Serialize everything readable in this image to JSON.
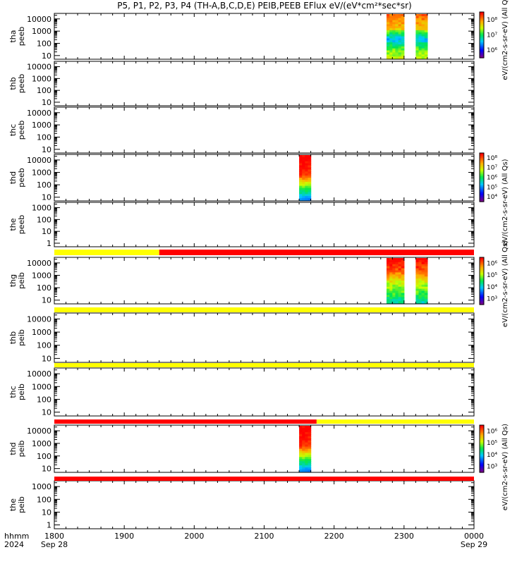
{
  "title": "P5, P1, P2, P3, P4 (TH-A,B,C,D,E) PEIB,PEEB EFlux eV/(eV*cm²*sec*sr)",
  "chart_data": [
    {
      "type": "heatmap",
      "panel": "tha_peeb",
      "ylabel": [
        "tha",
        "peeb"
      ],
      "ylog": true,
      "yticks": [
        "10",
        "100",
        "1000",
        "10000"
      ],
      "zlog": true,
      "colorbar": {
        "ticks": [
          "10⁶",
          "10⁷",
          "10⁸"
        ],
        "label": "eV/(cm2-s-sr-eV) (All Qs)"
      },
      "data_intervals": [
        [
          "22:45",
          "23:00"
        ],
        [
          "23:10",
          "23:20"
        ]
      ]
    },
    {
      "type": "heatmap",
      "panel": "thb_peeb",
      "ylabel": [
        "thb",
        "peeb"
      ],
      "ylog": true,
      "yticks": [
        "10",
        "100",
        "1000",
        "10000"
      ],
      "data_intervals": []
    },
    {
      "type": "heatmap",
      "panel": "thc_peeb",
      "ylabel": [
        "thc",
        "peeb"
      ],
      "ylog": true,
      "yticks": [
        "10",
        "100",
        "1000",
        "10000"
      ],
      "data_intervals": []
    },
    {
      "type": "heatmap",
      "panel": "thd_peeb",
      "ylabel": [
        "thd",
        "peeb"
      ],
      "ylog": true,
      "yticks": [
        "10",
        "100",
        "1000",
        "10000"
      ],
      "zlog": true,
      "colorbar": {
        "ticks": [
          "10⁴",
          "10⁵",
          "10⁶",
          "10⁷",
          "10⁸"
        ],
        "label": "eV/(cm2-s-sr-eV) (All Qs)"
      },
      "data_intervals": [
        [
          "21:30",
          "21:40"
        ]
      ]
    },
    {
      "type": "heatmap",
      "panel": "the_peeb",
      "ylabel": [
        "the",
        "peeb"
      ],
      "ylog": true,
      "yticks": [
        "1",
        "10",
        "100",
        "1000"
      ],
      "data_intervals": []
    },
    {
      "type": "heatmap",
      "panel": "thg_peib",
      "ylabel": [
        "thg",
        "peib"
      ],
      "ylog": true,
      "yticks": [
        "10",
        "100",
        "1000",
        "10000"
      ],
      "zlog": true,
      "colorbar": {
        "ticks": [
          "10³",
          "10⁴",
          "10⁵",
          "10⁶"
        ],
        "label": "eV/(cm2-s-sr-eV) (All Qs)"
      },
      "data_intervals": [
        [
          "22:45",
          "23:00"
        ],
        [
          "23:10",
          "23:20"
        ]
      ]
    },
    {
      "type": "heatmap",
      "panel": "thb_peib",
      "ylabel": [
        "thb",
        "peib"
      ],
      "ylog": true,
      "yticks": [
        "10",
        "100",
        "1000",
        "10000"
      ],
      "data_intervals": []
    },
    {
      "type": "heatmap",
      "panel": "thc_peib",
      "ylabel": [
        "thc",
        "peib"
      ],
      "ylog": true,
      "yticks": [
        "10",
        "100",
        "1000",
        "10000"
      ],
      "data_intervals": []
    },
    {
      "type": "heatmap",
      "panel": "thd_peib",
      "ylabel": [
        "thd",
        "peib"
      ],
      "ylog": true,
      "yticks": [
        "10",
        "100",
        "1000",
        "10000"
      ],
      "zlog": true,
      "colorbar": {
        "ticks": [
          "10³",
          "10⁴",
          "10⁵",
          "10⁶"
        ],
        "label": "eV/(cm2-s-sr-eV) (All Qs)"
      },
      "data_intervals": [
        [
          "21:30",
          "21:40"
        ]
      ]
    },
    {
      "type": "heatmap",
      "panel": "the_peib",
      "ylabel": [
        "the",
        "peib"
      ],
      "ylog": true,
      "yticks": [
        "1",
        "10",
        "100",
        "1000"
      ],
      "data_intervals": []
    }
  ],
  "status_bars": [
    {
      "after_panel": "the_peeb",
      "segments": [
        [
          "18:00",
          "19:30",
          "#ffff00"
        ],
        [
          "19:30",
          "24:00",
          "#ff0000"
        ]
      ]
    },
    {
      "after_panel": "thg_peib",
      "segments": [
        [
          "18:00",
          "24:00",
          "#ffff00"
        ]
      ]
    },
    {
      "after_panel": "thb_peib",
      "segments": [
        [
          "18:00",
          "24:00",
          "#ffff00"
        ]
      ]
    },
    {
      "after_panel": "thc_peib",
      "segments": [
        [
          "18:00",
          "21:45",
          "#ff0000"
        ],
        [
          "21:45",
          "24:00",
          "#ffff00"
        ]
      ]
    },
    {
      "after_panel": "thd_peib",
      "segments": [
        [
          "18:00",
          "24:00",
          "#ff0000"
        ]
      ]
    }
  ],
  "x_axis": {
    "row_labels": [
      "hhmm",
      "2024"
    ],
    "tick_labels": [
      "1800",
      "1900",
      "2000",
      "2100",
      "2200",
      "2300",
      "0000"
    ],
    "start_date": "Sep 28",
    "end_date": "Sep 29",
    "range": [
      "2024-09-28 18:00",
      "2024-09-29 00:00"
    ]
  }
}
